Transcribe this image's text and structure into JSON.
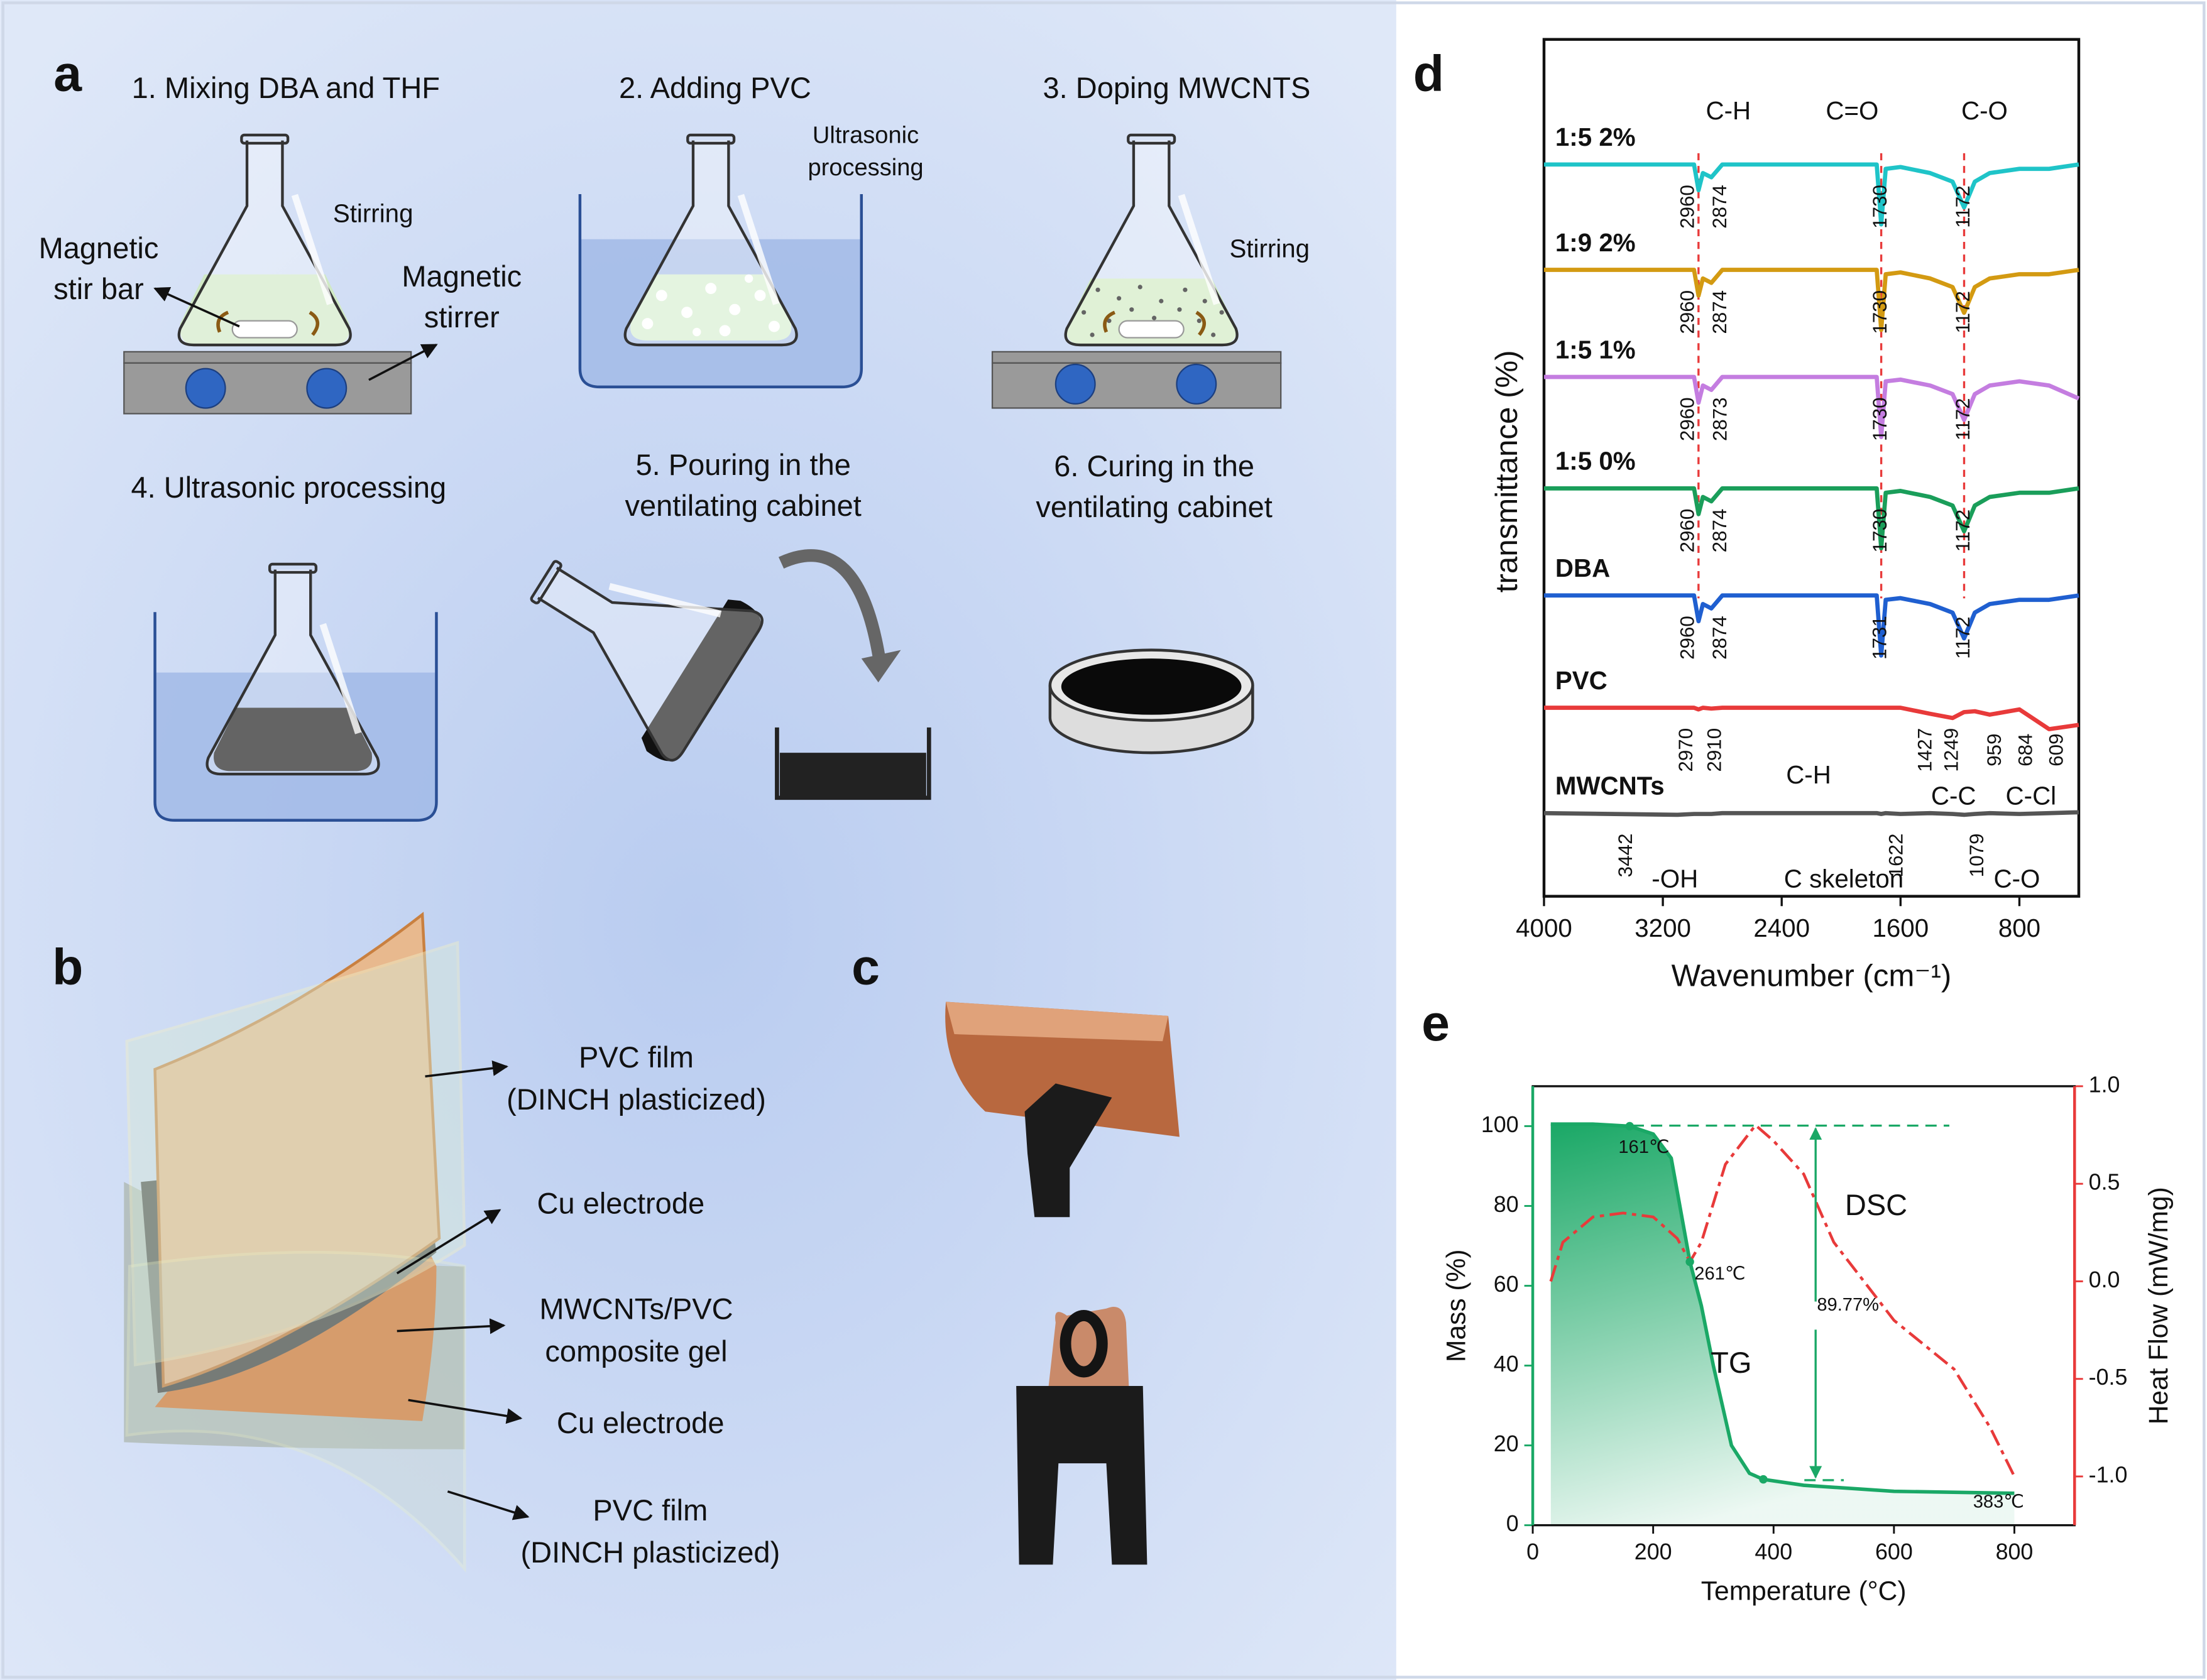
{
  "panel_a": {
    "label": "a",
    "steps": [
      [
        "1. Mixing DBA and THF"
      ],
      [
        "2. Adding PVC"
      ],
      [
        "3. Doping MWCNTS"
      ],
      [
        "4. Ultrasonic processing"
      ],
      [
        "5. Pouring in the",
        "ventilating cabinet"
      ],
      [
        "6. Curing in the",
        "ventilating cabinet"
      ]
    ],
    "notes": {
      "stirring_1": "Stirring",
      "stir_bar": [
        "Magnetic",
        "stir bar"
      ],
      "stirrer": [
        "Magnetic",
        "stirrer"
      ],
      "ultrasonic": [
        "Ultrasonic",
        "processing"
      ],
      "stirring_3": "Stirring"
    }
  },
  "panel_b": {
    "label": "b",
    "layers": [
      [
        "PVC film",
        "(DINCH plasticized)"
      ],
      [
        "Cu electrode"
      ],
      [
        "MWCNTs/PVC",
        "composite gel"
      ],
      [
        "Cu electrode"
      ],
      [
        "PVC film",
        "(DINCH plasticized)"
      ]
    ]
  },
  "panel_c": {
    "label": "c"
  },
  "chart_data": [
    {
      "type": "line",
      "label": "d",
      "xlabel": "Wavenumber (cm⁻¹)",
      "ylabel": "transmittance (%)",
      "xlim": [
        4000,
        400
      ],
      "xticks": [
        4000,
        3200,
        2400,
        1600,
        800
      ],
      "ylim": [
        0,
        100
      ],
      "x": [
        4000,
        3100,
        2990,
        2960,
        2930,
        2874,
        2800,
        1800,
        1760,
        1730,
        1700,
        1600,
        1400,
        1250,
        1172,
        1100,
        1000,
        800,
        600,
        400
      ],
      "series": [
        {
          "name": "1:5 2%",
          "color": "#1fc4c8",
          "values": [
            85.4,
            85.4,
            85.4,
            82.4,
            84.4,
            83.9,
            85.4,
            85.4,
            85.4,
            78.4,
            84.9,
            85.1,
            84.4,
            83.4,
            80.4,
            83.4,
            84.4,
            84.9,
            84.9,
            85.4
          ],
          "peaks": [
            2960,
            2874,
            1730,
            1172
          ],
          "groups": [
            "C-H",
            "C=O",
            "C-O"
          ]
        },
        {
          "name": "1:9 2%",
          "color": "#d39a12",
          "values": [
            73.1,
            73.1,
            73.1,
            70.1,
            72.1,
            71.6,
            73.1,
            73.1,
            73.1,
            66.1,
            72.6,
            72.8,
            72.1,
            71.1,
            68.1,
            71.1,
            72.1,
            72.6,
            72.6,
            73.1
          ],
          "peaks": [
            2960,
            2874,
            1730,
            1172
          ]
        },
        {
          "name": "1:5 1%",
          "color": "#c47de0",
          "values": [
            60.6,
            60.6,
            60.6,
            57.6,
            59.6,
            59.1,
            60.6,
            60.6,
            60.6,
            53.6,
            60.1,
            60.3,
            59.6,
            58.6,
            55.6,
            58.6,
            59.6,
            60.1,
            59.6,
            58.1
          ],
          "peaks": [
            2960,
            2873,
            1730,
            1172
          ]
        },
        {
          "name": "1:5 0%",
          "color": "#1a9e5a",
          "values": [
            47.6,
            47.6,
            47.6,
            44.6,
            46.6,
            46.1,
            47.6,
            47.6,
            47.6,
            40.6,
            47.1,
            47.3,
            46.6,
            45.6,
            42.6,
            45.6,
            46.6,
            47.1,
            47.1,
            47.6
          ],
          "peaks": [
            2960,
            2874,
            1730,
            1172
          ]
        },
        {
          "name": "DBA",
          "color": "#1f5fd0",
          "values": [
            35.1,
            35.1,
            35.1,
            32.1,
            34.1,
            33.6,
            35.1,
            35.1,
            35.1,
            28.1,
            34.6,
            34.8,
            34.1,
            33.1,
            30.1,
            33.1,
            34.1,
            34.6,
            34.6,
            35.1
          ],
          "peaks": [
            2960,
            2874,
            1731,
            1172
          ]
        },
        {
          "name": "PVC",
          "color": "#e83a3a",
          "values": [
            22,
            22,
            22,
            21.8,
            22,
            21.9,
            22,
            22,
            22,
            22,
            22,
            22,
            21.3,
            20.8,
            21.5,
            21.6,
            21.2,
            21.8,
            19.5,
            20
          ],
          "peaks": [
            2970,
            2910,
            1427,
            1249,
            959,
            684,
            609
          ],
          "groups": [
            "C-H",
            "C-C",
            "C-Cl"
          ]
        },
        {
          "name": "MWCNTs",
          "color": "#555555",
          "values": [
            9.7,
            9.5,
            9.6,
            9.6,
            9.6,
            9.6,
            9.7,
            9.7,
            9.7,
            9.6,
            9.7,
            9.6,
            9.7,
            9.6,
            9.5,
            9.6,
            9.7,
            9.6,
            9.7,
            9.8
          ],
          "peaks": [
            3442,
            1622,
            1079
          ],
          "groups": [
            "-OH",
            "C skeleton",
            "C-O"
          ]
        }
      ]
    },
    {
      "type": "line",
      "label": "e",
      "xlabel": "Temperature (°C)",
      "ylabel": "Mass (%)",
      "y2label": "Heat Flow (mW/mg)",
      "xlim": [
        0,
        900
      ],
      "xticks": [
        0,
        200,
        400,
        600,
        800
      ],
      "ylim": [
        0,
        110
      ],
      "yticks": [
        0,
        20,
        40,
        60,
        80,
        100
      ],
      "y2lim": [
        -1.25,
        1.0
      ],
      "y2ticks": [
        {
          "value": 1,
          "label": "1.0"
        },
        {
          "value": 0.5,
          "label": "0.5"
        },
        {
          "value": 0,
          "label": "0.0"
        },
        {
          "value": -0.5,
          "label": "-0.5"
        },
        {
          "value": -1,
          "label": "-1.0"
        }
      ],
      "series": [
        {
          "name": "TG",
          "color": "#1aa866",
          "x": [
            30,
            100,
            161,
            200,
            230,
            261,
            280,
            300,
            330,
            360,
            383,
            450,
            600,
            800
          ],
          "values": [
            100.5,
            100.5,
            100,
            98,
            92,
            66,
            55,
            40,
            20,
            13,
            11.5,
            10,
            8.5,
            8
          ]
        },
        {
          "name": "DSC",
          "color": "#e83a3a",
          "axis": "y2",
          "x": [
            30,
            50,
            100,
            150,
            200,
            240,
            261,
            280,
            320,
            370,
            400,
            450,
            500,
            600,
            700,
            760,
            800
          ],
          "values": [
            0.0,
            0.2,
            0.33,
            0.35,
            0.33,
            0.22,
            0.1,
            0.2,
            0.6,
            0.8,
            0.72,
            0.55,
            0.2,
            -0.2,
            -0.45,
            -0.75,
            -1.0
          ]
        }
      ],
      "annotations": [
        "161℃",
        "261℃",
        "383℃",
        "89.77%"
      ]
    }
  ]
}
